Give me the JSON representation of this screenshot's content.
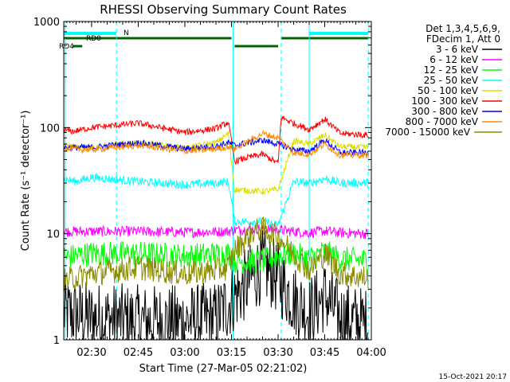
{
  "chart_data": {
    "type": "line",
    "title": "RHESSI Observing Summary Count Rates",
    "xlabel": "Start Time (27-Mar-05 02:21:02)",
    "ylabel": "Count Rate (s⁻¹ detector⁻¹)",
    "y_scale": "log",
    "ylim": [
      1,
      1000
    ],
    "xlim": [
      "02:21:02",
      "04:00:00"
    ],
    "x_ticks": [
      "02:30",
      "02:45",
      "03:00",
      "03:15",
      "03:30",
      "03:45",
      "04:00"
    ],
    "y_ticks": [
      "1",
      "10",
      "100",
      "1000"
    ],
    "legend_header": [
      "Det 1,3,4,5,6,9,",
      "FDecim 1, Att 0"
    ],
    "legend_position": "right",
    "timestamp": "15-Oct-2021 20:17",
    "flag_labels": {
      "n": "N",
      "rd0": "RD0",
      "rd4": "RD4"
    },
    "flags": {
      "night": [
        [
          "02:21:02",
          "02:38"
        ],
        [
          "03:40",
          "03:59"
        ]
      ],
      "rd0": [
        [
          "02:21:02",
          "03:15"
        ],
        [
          "03:31",
          "03:59"
        ]
      ],
      "rd4": [
        [
          "02:24",
          "02:27"
        ],
        [
          "03:16",
          "03:30"
        ]
      ]
    },
    "vertical_lines": {
      "solid": [
        "02:21:30",
        "03:15:30",
        "03:40"
      ],
      "dashed": [
        "02:38",
        "03:31",
        "03:59"
      ]
    },
    "series": [
      {
        "name": "3 - 6 keV",
        "color": "#000000",
        "x": [
          "02:21",
          "02:30",
          "02:45",
          "03:00",
          "03:10",
          "03:14",
          "03:16",
          "03:20",
          "03:25",
          "03:30",
          "03:35",
          "03:40",
          "03:45",
          "03:50",
          "03:55",
          "03:59"
        ],
        "values": [
          1.8,
          1.6,
          1.5,
          1.5,
          1.6,
          2.2,
          2.6,
          3.4,
          5.0,
          3.8,
          2.4,
          1.8,
          2.6,
          1.6,
          1.5,
          1.4
        ]
      },
      {
        "name": "6 - 12 keV",
        "color": "#ff00ff",
        "x": [
          "02:21",
          "02:30",
          "02:45",
          "03:00",
          "03:14",
          "03:16",
          "03:25",
          "03:30",
          "03:35",
          "03:40",
          "03:45",
          "03:50",
          "03:59"
        ],
        "values": [
          10.5,
          10.5,
          10.5,
          10.3,
          10.5,
          10.8,
          11.2,
          10.8,
          10.5,
          10.2,
          10.6,
          10.2,
          10.0
        ]
      },
      {
        "name": "12 - 25 keV",
        "color": "#00ff00",
        "x": [
          "02:21",
          "02:30",
          "02:45",
          "03:00",
          "03:14",
          "03:16",
          "03:25",
          "03:30",
          "03:35",
          "03:40",
          "03:45",
          "03:50",
          "03:59"
        ],
        "values": [
          6.0,
          6.5,
          6.5,
          6.2,
          6.5,
          5.5,
          5.5,
          6.2,
          6.5,
          5.8,
          6.8,
          5.8,
          5.6
        ]
      },
      {
        "name": "25 - 50 keV",
        "color": "#00ffff",
        "x": [
          "02:21",
          "02:25",
          "02:30",
          "02:45",
          "03:00",
          "03:10",
          "03:14",
          "03:16",
          "03:25",
          "03:30",
          "03:35",
          "03:40",
          "03:45",
          "03:50",
          "03:59"
        ],
        "values": [
          33,
          31,
          34,
          31,
          29,
          30,
          31,
          13,
          13,
          12,
          31,
          30,
          33,
          30,
          30
        ]
      },
      {
        "name": "50 - 100 keV",
        "color": "#dddd00",
        "x": [
          "02:21",
          "02:30",
          "02:45",
          "03:00",
          "03:10",
          "03:14",
          "03:16",
          "03:25",
          "03:30",
          "03:35",
          "03:40",
          "03:45",
          "03:50",
          "03:59"
        ],
        "values": [
          68,
          65,
          72,
          64,
          72,
          88,
          26,
          25,
          26,
          75,
          70,
          85,
          66,
          65
        ]
      },
      {
        "name": "100 - 300 keV",
        "color": "#ff0000",
        "x": [
          "02:21",
          "02:24",
          "02:30",
          "02:45",
          "03:00",
          "03:10",
          "03:14",
          "03:16",
          "03:20",
          "03:25",
          "03:30",
          "03:31",
          "03:35",
          "03:40",
          "03:45",
          "03:50",
          "03:59"
        ],
        "values": [
          95,
          92,
          100,
          110,
          90,
          98,
          112,
          48,
          52,
          56,
          46,
          125,
          110,
          96,
          120,
          88,
          85
        ]
      },
      {
        "name": "300 - 800 keV",
        "color": "#0000ff",
        "x": [
          "02:21",
          "02:30",
          "02:45",
          "03:00",
          "03:10",
          "03:14",
          "03:16",
          "03:25",
          "03:30",
          "03:35",
          "03:40",
          "03:45",
          "03:50",
          "03:59"
        ],
        "values": [
          65,
          65,
          72,
          63,
          67,
          72,
          68,
          76,
          70,
          62,
          60,
          76,
          58,
          58
        ]
      },
      {
        "name": "800 - 7000 keV",
        "color": "#ff8800",
        "x": [
          "02:21",
          "02:30",
          "02:45",
          "03:00",
          "03:10",
          "03:14",
          "03:16",
          "03:25",
          "03:30",
          "03:35",
          "03:40",
          "03:45",
          "03:50",
          "03:59"
        ],
        "values": [
          63,
          62,
          68,
          60,
          63,
          66,
          63,
          88,
          80,
          58,
          56,
          70,
          55,
          55
        ]
      },
      {
        "name": "7000 - 15000 keV",
        "color": "#8b8b00",
        "x": [
          "02:21",
          "02:30",
          "02:45",
          "03:00",
          "03:10",
          "03:14",
          "03:16",
          "03:22",
          "03:25",
          "03:30",
          "03:35",
          "03:40",
          "03:45",
          "03:50",
          "03:59"
        ],
        "values": [
          3.6,
          4.2,
          4.8,
          4.2,
          4.5,
          4.8,
          7.0,
          10.5,
          11.0,
          9.5,
          6.5,
          4.5,
          6.5,
          4.2,
          3.8
        ]
      }
    ]
  }
}
